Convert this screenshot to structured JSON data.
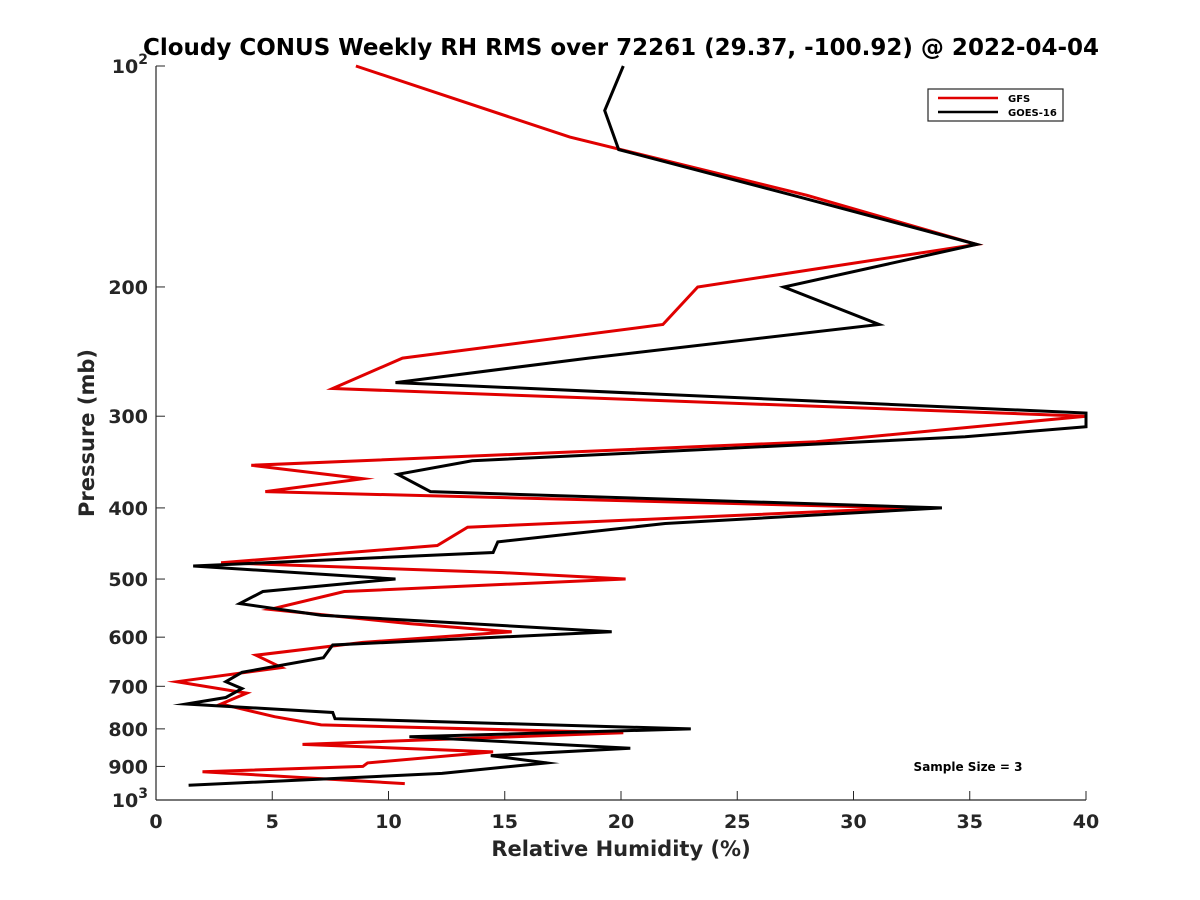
{
  "chart_data": {
    "type": "line",
    "title": "Cloudy CONUS Weekly RH RMS over 72261 (29.37, -100.92) @ 2022-04-04",
    "xlabel": "Relative Humidity (%)",
    "ylabel": "Pressure (mb)",
    "xlim": [
      0,
      40
    ],
    "ylim": [
      100,
      1000
    ],
    "y_scale": "log",
    "y_reversed": true,
    "grid": false,
    "legend_position": "top-right",
    "x_ticks": [
      0,
      5,
      10,
      15,
      20,
      25,
      30,
      35,
      40
    ],
    "y_ticks": [
      {
        "value": 100,
        "label": "10",
        "sup": "2"
      },
      {
        "value": 200,
        "label": "200"
      },
      {
        "value": 300,
        "label": "300"
      },
      {
        "value": 400,
        "label": "400"
      },
      {
        "value": 500,
        "label": "500"
      },
      {
        "value": 600,
        "label": "600"
      },
      {
        "value": 700,
        "label": "700"
      },
      {
        "value": 800,
        "label": "800"
      },
      {
        "value": 900,
        "label": "900"
      },
      {
        "value": 1000,
        "label": "10",
        "sup": "3"
      }
    ],
    "annotation": "Sample Size = 3",
    "series": [
      {
        "name": "GFS",
        "color": "#e00000",
        "points": [
          [
            8.6,
            100
          ],
          [
            17.8,
            125
          ],
          [
            28.0,
            150
          ],
          [
            35.3,
            175
          ],
          [
            23.3,
            200
          ],
          [
            21.8,
            225
          ],
          [
            10.6,
            250
          ],
          [
            7.6,
            275
          ],
          [
            40.0,
            300
          ],
          [
            28.4,
            325
          ],
          [
            4.1,
            350
          ],
          [
            8.9,
            365
          ],
          [
            4.7,
            380
          ],
          [
            32.3,
            400
          ],
          [
            13.4,
            425
          ],
          [
            12.1,
            450
          ],
          [
            2.8,
            475
          ],
          [
            14.9,
            490
          ],
          [
            20.2,
            500
          ],
          [
            8.1,
            520
          ],
          [
            4.9,
            550
          ],
          [
            10.9,
            575
          ],
          [
            15.3,
            590
          ],
          [
            8.9,
            610
          ],
          [
            4.3,
            635
          ],
          [
            5.4,
            660
          ],
          [
            0.9,
            690
          ],
          [
            3.9,
            715
          ],
          [
            2.8,
            740
          ],
          [
            5.1,
            770
          ],
          [
            7.1,
            790
          ],
          [
            20.1,
            810
          ],
          [
            6.3,
            840
          ],
          [
            14.5,
            860
          ],
          [
            9.1,
            890
          ],
          [
            8.9,
            900
          ],
          [
            2.0,
            915
          ],
          [
            10.7,
            950
          ]
        ]
      },
      {
        "name": "GOES-16",
        "color": "#000000",
        "points": [
          [
            20.1,
            100
          ],
          [
            19.3,
            115
          ],
          [
            19.9,
            130
          ],
          [
            27.4,
            150
          ],
          [
            35.3,
            175
          ],
          [
            27.0,
            200
          ],
          [
            31.1,
            225
          ],
          [
            18.6,
            250
          ],
          [
            10.3,
            270
          ],
          [
            40.0,
            297
          ],
          [
            40.0,
            310
          ],
          [
            34.8,
            320
          ],
          [
            13.6,
            345
          ],
          [
            10.4,
            360
          ],
          [
            11.8,
            380
          ],
          [
            33.8,
            400
          ],
          [
            21.9,
            420
          ],
          [
            14.7,
            445
          ],
          [
            14.5,
            460
          ],
          [
            1.6,
            480
          ],
          [
            10.3,
            500
          ],
          [
            4.6,
            520
          ],
          [
            3.6,
            540
          ],
          [
            7.1,
            560
          ],
          [
            19.6,
            590
          ],
          [
            7.6,
            615
          ],
          [
            7.2,
            640
          ],
          [
            3.7,
            670
          ],
          [
            3.0,
            690
          ],
          [
            3.7,
            705
          ],
          [
            3.0,
            725
          ],
          [
            1.3,
            740
          ],
          [
            7.6,
            760
          ],
          [
            7.7,
            775
          ],
          [
            23.0,
            800
          ],
          [
            10.9,
            820
          ],
          [
            20.4,
            850
          ],
          [
            14.4,
            870
          ],
          [
            16.8,
            890
          ],
          [
            12.3,
            920
          ],
          [
            1.4,
            955
          ]
        ]
      }
    ]
  }
}
